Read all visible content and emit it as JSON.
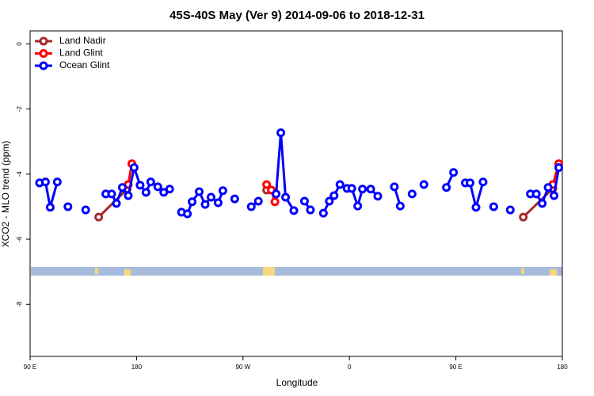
{
  "chart_data": {
    "type": "line",
    "title": "45S-40S May (Ver 9)   2014-09-06 to 2018-12-31",
    "x_label": "Longitude",
    "y_label": "XCO2 - MLO trend (ppm)",
    "xlim": [
      90,
      540
    ],
    "ylim": [
      -9.6,
      0.4
    ],
    "xticks": [
      {
        "value": 90,
        "label": "90 E"
      },
      {
        "value": 180,
        "label": "180"
      },
      {
        "value": 270,
        "label": "90 W"
      },
      {
        "value": 360,
        "label": "0"
      },
      {
        "value": 450,
        "label": "90 E"
      },
      {
        "value": 540,
        "label": "180"
      }
    ],
    "yticks": [
      0,
      -2,
      -4,
      -6,
      -8
    ],
    "legend": "top-left",
    "series": [
      {
        "name": "Land Nadir",
        "color": "#a52a2a",
        "x": [
          148,
          172,
          null,
          290,
          null,
          507,
          532
        ],
        "values": [
          -5.32,
          -4.46,
          null,
          -4.49,
          null,
          -5.32,
          -4.44
        ]
      },
      {
        "name": "Land Glint",
        "color": "#ff0000",
        "x": [
          173,
          176,
          null,
          290,
          294,
          297,
          null,
          532,
          537
        ],
        "values": [
          -4.32,
          -3.68,
          null,
          -4.32,
          -4.49,
          -4.85,
          null,
          -4.32,
          -3.68
        ]
      },
      {
        "name": "Ocean Glint",
        "color": "#0000ff",
        "x": [
          98,
          103,
          107,
          113,
          null,
          122,
          null,
          137,
          null,
          154,
          159,
          163,
          168,
          173,
          178,
          183,
          188,
          192,
          198,
          203,
          208,
          null,
          218,
          223,
          227,
          233,
          238,
          243,
          249,
          253,
          null,
          263,
          null,
          277,
          283,
          null,
          298,
          302,
          306,
          313,
          null,
          322,
          327,
          null,
          338,
          343,
          347,
          352,
          358,
          362,
          367,
          371,
          378,
          384,
          null,
          398,
          403,
          null,
          413,
          null,
          423,
          null,
          442,
          448,
          null,
          458,
          462,
          467,
          473,
          null,
          482,
          null,
          496,
          null,
          513,
          518,
          523,
          528,
          533,
          537
        ],
        "values": [
          -4.27,
          -4.24,
          -5.02,
          -4.24,
          null,
          -5.0,
          null,
          -5.1,
          null,
          -4.61,
          -4.61,
          -4.9,
          -4.41,
          -4.66,
          -3.8,
          -4.34,
          -4.56,
          -4.24,
          -4.39,
          -4.56,
          -4.46,
          null,
          -5.17,
          -5.22,
          -4.85,
          -4.54,
          -4.93,
          -4.71,
          -4.88,
          -4.51,
          null,
          -4.76,
          null,
          -5.0,
          -4.83,
          null,
          -4.61,
          -2.73,
          -4.71,
          -5.12,
          null,
          -4.83,
          -5.1,
          null,
          -5.2,
          -4.83,
          -4.66,
          -4.32,
          -4.44,
          -4.44,
          -4.98,
          -4.46,
          -4.46,
          -4.68,
          null,
          -4.39,
          -4.98,
          null,
          -4.61,
          null,
          -4.32,
          null,
          -4.41,
          -3.95,
          null,
          -4.27,
          -4.27,
          -5.02,
          -4.24,
          null,
          -5.0,
          null,
          -5.1,
          null,
          -4.61,
          -4.61,
          -4.9,
          -4.41,
          -4.66,
          -3.8
        ]
      }
    ]
  }
}
